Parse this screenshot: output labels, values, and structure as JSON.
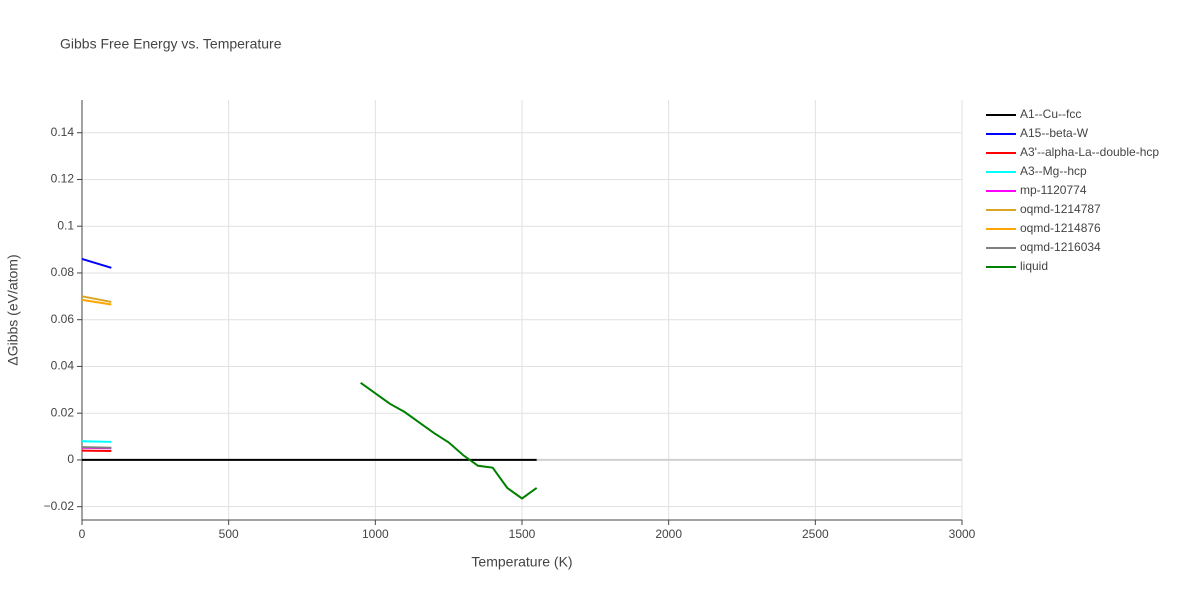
{
  "chart_data": {
    "type": "line",
    "title": "Gibbs Free Energy vs. Temperature",
    "x_label": "Temperature (K)",
    "y_label": "ΔGibbs (eV/atom)",
    "xlim": [
      0,
      3000
    ],
    "ylim": [
      -0.0257,
      0.154
    ],
    "xticks": [
      0,
      500,
      1000,
      1500,
      2000,
      2500,
      3000
    ],
    "yticks": [
      {
        "value": -0.02,
        "label": "−0.02"
      },
      0,
      0.02,
      0.04,
      0.06,
      0.08,
      0.1,
      0.12,
      0.14
    ],
    "grid": true,
    "legend": "right",
    "series": [
      {
        "name": "A1--Cu--fcc",
        "color": "#000000",
        "x": [
          0,
          1550
        ],
        "values": [
          0,
          0
        ]
      },
      {
        "name": "A15--beta-W",
        "color": "#0000ff",
        "x": [
          0,
          100
        ],
        "values": [
          0.086,
          0.0822
        ]
      },
      {
        "name": "A3'--alpha-La--double-hcp",
        "color": "#ff0000",
        "x": [
          0,
          100
        ],
        "values": [
          0.004,
          0.0038
        ]
      },
      {
        "name": "A3--Mg--hcp",
        "color": "#00ffff",
        "x": [
          0,
          100
        ],
        "values": [
          0.008,
          0.0077
        ]
      },
      {
        "name": "mp-1120774",
        "color": "#ff00ff",
        "x": [
          0,
          100
        ],
        "values": [
          0.0052,
          0.005
        ]
      },
      {
        "name": "oqmd-1214787",
        "color": "#daa520",
        "x": [
          0,
          100
        ],
        "values": [
          0.07,
          0.0676
        ]
      },
      {
        "name": "oqmd-1214876",
        "color": "#ffa500",
        "x": [
          0,
          100
        ],
        "values": [
          0.0685,
          0.0665
        ]
      },
      {
        "name": "oqmd-1216034",
        "color": "#808080",
        "x": [
          0,
          100
        ],
        "values": [
          0.0055,
          0.0052
        ]
      },
      {
        "name": "liquid",
        "color": "#008000",
        "x": [
          950,
          1000,
          1050,
          1100,
          1150,
          1200,
          1250,
          1300,
          1350,
          1400,
          1450,
          1500,
          1550
        ],
        "values": [
          0.033,
          0.0285,
          0.024,
          0.0205,
          0.016,
          0.0115,
          0.0075,
          0.002,
          -0.0025,
          -0.0033,
          -0.012,
          -0.0165,
          -0.012
        ]
      }
    ]
  }
}
